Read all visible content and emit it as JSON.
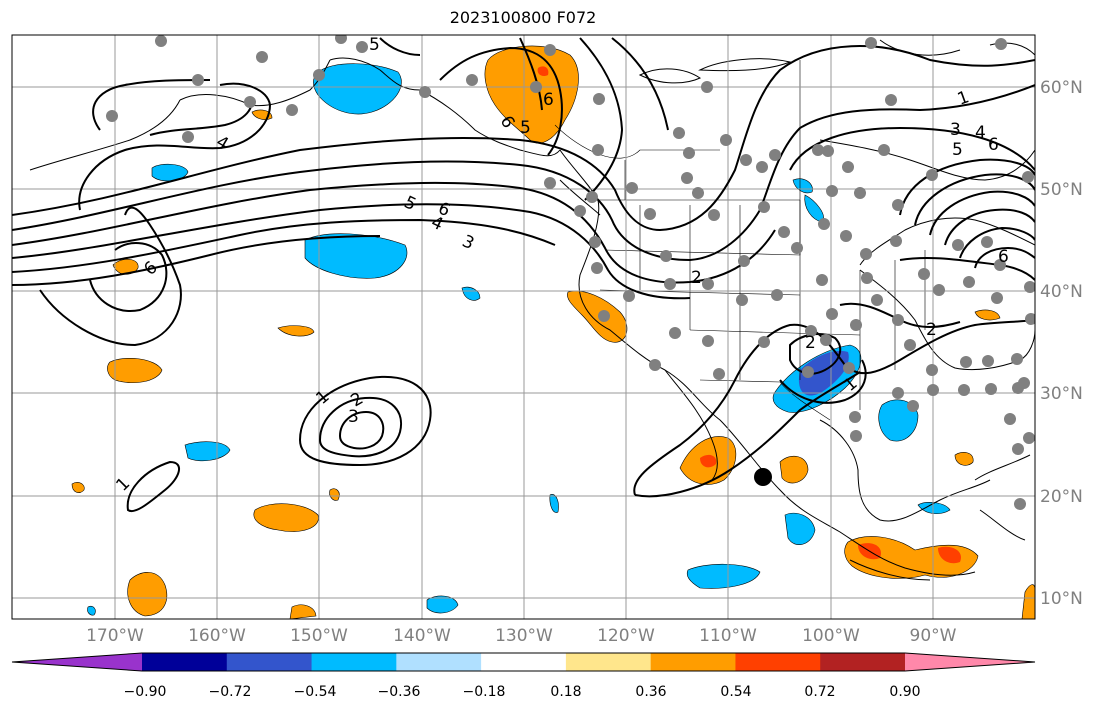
{
  "title": "2023100800 F072",
  "lon_labels": [
    "170°W",
    "160°W",
    "150°W",
    "140°W",
    "130°W",
    "120°W",
    "110°W",
    "100°W",
    "90°W"
  ],
  "lat_labels": [
    "60°N",
    "50°N",
    "40°N",
    "30°N",
    "20°N",
    "10°N"
  ],
  "colorbar": {
    "tick_labels": [
      "−0.90",
      "−0.72",
      "−0.54",
      "−0.36",
      "−0.18",
      "0.18",
      "0.36",
      "0.54",
      "0.72",
      "0.90"
    ],
    "colors": [
      "#9933cc",
      "#000099",
      "#3355cc",
      "#00bbff",
      "#b0e0ff",
      "#ffffff",
      "#ffe68c",
      "#ff9d00",
      "#ff4000",
      "#b22222",
      "#ff88aa"
    ]
  },
  "contour_labels": [
    "1",
    "2",
    "3",
    "4",
    "5",
    "6"
  ],
  "colors": {
    "positive": "#ff9d00",
    "negative": "#00bbff",
    "strong_positive": "#ff4000",
    "strong_negative": "#3355cc",
    "station": "#808080",
    "grid": "#999999"
  }
}
